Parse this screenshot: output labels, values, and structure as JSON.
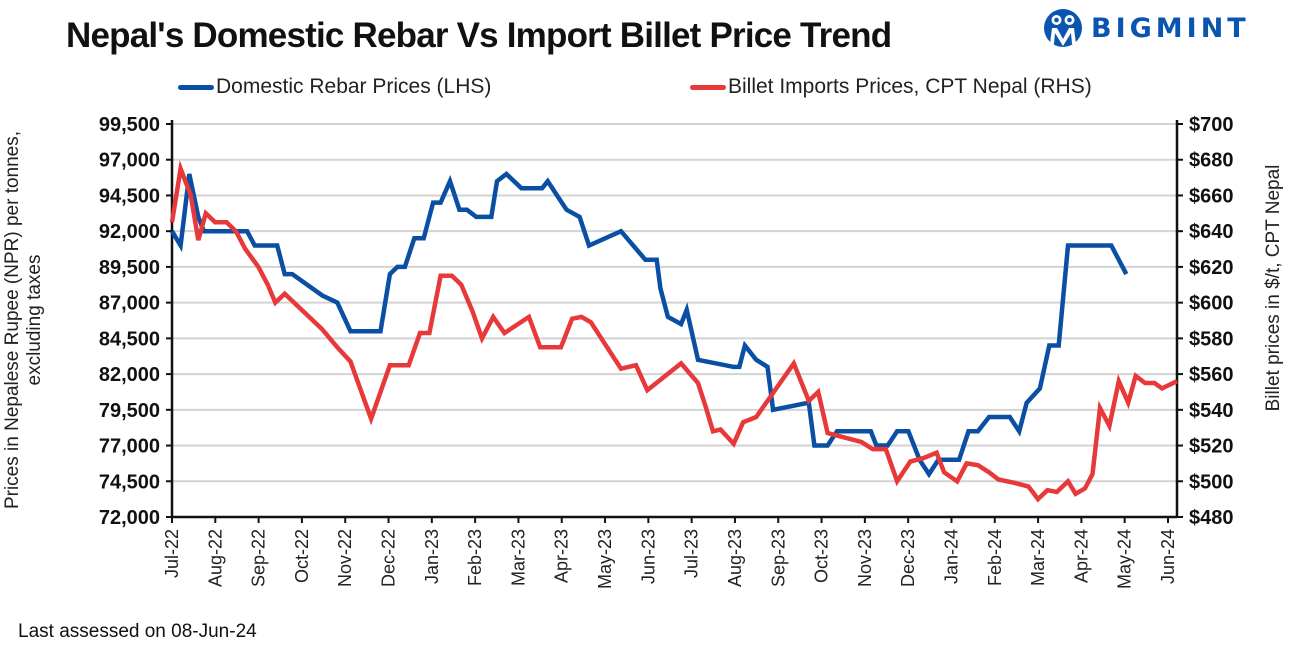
{
  "header": {
    "title": "Nepal's Domestic Rebar Vs Import Billet Price Trend",
    "logo_text": "BIGMINT",
    "logo_icon": "people-circle-icon",
    "brand_color": "#0a55b0"
  },
  "footer": {
    "note": "Last assessed on 08-Jun-24"
  },
  "chart_data": {
    "type": "line",
    "title": "Nepal's Domestic Rebar Vs Import Billet Price Trend",
    "xlabel": "",
    "ylabel": "Prices in Nepalese Rupee (NPR) per tonnes, excluding taxes",
    "ylabel_left_lines": [
      "Prices in Nepalese Rupee (NPR) per tonnes,",
      "excluding taxes"
    ],
    "y2label": "Billet prices in $/t, CPT Nepal",
    "legend_position": "top",
    "grid": true,
    "x_tick_labels": [
      "Jul-22",
      "Aug-22",
      "Sep-22",
      "Oct-22",
      "Nov-22",
      "Dec-22",
      "Jan-23",
      "Feb-23",
      "Mar-23",
      "Apr-23",
      "May-23",
      "Jun-23",
      "Jul-23",
      "Aug-23",
      "Sep-23",
      "Oct-23",
      "Nov-23",
      "Dec-23",
      "Jan-24",
      "Feb-24",
      "Mar-24",
      "Apr-24",
      "May-24",
      "Jun-24"
    ],
    "x_range_months": [
      0,
      23.2
    ],
    "ylim": [
      72000,
      99500
    ],
    "y_ticks": [
      72000,
      74500,
      77000,
      79500,
      82000,
      84500,
      87000,
      89500,
      92000,
      94500,
      97000,
      99500
    ],
    "y_tick_labels": [
      "72,000",
      "74,500",
      "77,000",
      "79,500",
      "82,000",
      "84,500",
      "87,000",
      "89,500",
      "92,000",
      "94,500",
      "97,000",
      "99,500"
    ],
    "y2lim": [
      480,
      700
    ],
    "y2_ticks": [
      480,
      500,
      520,
      540,
      560,
      580,
      600,
      620,
      640,
      660,
      680,
      700
    ],
    "y2_tick_labels": [
      "$480",
      "$500",
      "$520",
      "$540",
      "$560",
      "$580",
      "$600",
      "$620",
      "$640",
      "$660",
      "$680",
      "$700"
    ],
    "series": [
      {
        "name": "Domestic Rebar Prices (LHS)",
        "axis": "left",
        "color": "#0a4fa3",
        "points": [
          [
            0.0,
            92000
          ],
          [
            0.23,
            91000
          ],
          [
            0.46,
            96000
          ],
          [
            0.7,
            93000
          ],
          [
            0.85,
            92000
          ],
          [
            1.2,
            92000
          ],
          [
            1.6,
            92000
          ],
          [
            2.0,
            92000
          ],
          [
            2.2,
            91000
          ],
          [
            2.6,
            91000
          ],
          [
            2.8,
            91000
          ],
          [
            3.0,
            89000
          ],
          [
            3.2,
            89000
          ],
          [
            4.0,
            87500
          ],
          [
            4.4,
            87000
          ],
          [
            4.75,
            85000
          ],
          [
            5.2,
            85000
          ],
          [
            5.55,
            85000
          ],
          [
            5.8,
            89000
          ],
          [
            6.0,
            89500
          ],
          [
            6.2,
            89500
          ],
          [
            6.45,
            91500
          ],
          [
            6.7,
            91500
          ],
          [
            6.95,
            94000
          ],
          [
            7.15,
            94000
          ],
          [
            7.4,
            95500
          ],
          [
            7.65,
            93500
          ],
          [
            7.85,
            93500
          ],
          [
            8.1,
            93000
          ],
          [
            8.5,
            93000
          ],
          [
            8.65,
            95500
          ],
          [
            8.9,
            96000
          ],
          [
            9.3,
            95000
          ],
          [
            9.6,
            95000
          ],
          [
            9.85,
            95000
          ],
          [
            10.0,
            95500
          ],
          [
            10.5,
            93500
          ],
          [
            10.85,
            93000
          ],
          [
            11.1,
            91000
          ],
          [
            11.95,
            92000
          ],
          [
            12.6,
            90000
          ],
          [
            12.9,
            90000
          ],
          [
            13.0,
            88000
          ],
          [
            13.2,
            86000
          ],
          [
            13.55,
            85500
          ],
          [
            13.7,
            86500
          ],
          [
            14.0,
            83000
          ],
          [
            14.95,
            82500
          ],
          [
            15.1,
            82500
          ],
          [
            15.25,
            84000
          ],
          [
            15.55,
            83000
          ],
          [
            15.85,
            82500
          ],
          [
            16.0,
            79500
          ],
          [
            16.95,
            80000
          ],
          [
            17.1,
            77000
          ],
          [
            17.45,
            77000
          ],
          [
            17.7,
            78000
          ],
          [
            18.0,
            78000
          ],
          [
            18.3,
            78000
          ],
          [
            18.6,
            78000
          ],
          [
            18.75,
            77000
          ],
          [
            19.05,
            77000
          ],
          [
            19.3,
            78000
          ],
          [
            19.6,
            78000
          ],
          [
            19.9,
            76000
          ],
          [
            20.15,
            75000
          ],
          [
            20.4,
            76000
          ],
          [
            20.7,
            76000
          ],
          [
            20.95,
            76000
          ],
          [
            21.2,
            78000
          ],
          [
            21.45,
            78000
          ],
          [
            21.75,
            79000
          ],
          [
            22.0,
            79000
          ],
          [
            22.3,
            79000
          ],
          [
            22.55,
            78000
          ],
          [
            22.75,
            80000
          ],
          [
            23.1,
            81000
          ],
          [
            23.35,
            84000
          ],
          [
            23.6,
            84000
          ],
          [
            23.85,
            91000
          ],
          [
            24.2,
            91000
          ],
          [
            24.7,
            91000
          ],
          [
            25.0,
            91000
          ],
          [
            25.4,
            89000
          ]
        ]
      },
      {
        "name": "Billet Imports Prices, CPT Nepal (RHS)",
        "axis": "right",
        "color": "#e8393a",
        "points": [
          [
            0.0,
            645
          ],
          [
            0.23,
            675
          ],
          [
            0.5,
            660
          ],
          [
            0.7,
            635
          ],
          [
            0.9,
            650
          ],
          [
            1.15,
            645
          ],
          [
            1.45,
            645
          ],
          [
            1.7,
            640
          ],
          [
            1.95,
            630
          ],
          [
            2.3,
            620
          ],
          [
            2.55,
            610
          ],
          [
            2.75,
            600
          ],
          [
            3.0,
            605
          ],
          [
            4.0,
            585
          ],
          [
            4.4,
            575
          ],
          [
            4.75,
            567
          ],
          [
            5.3,
            535
          ],
          [
            5.8,
            565
          ],
          [
            6.3,
            565
          ],
          [
            6.6,
            583
          ],
          [
            6.85,
            583
          ],
          [
            7.15,
            615
          ],
          [
            7.45,
            615
          ],
          [
            7.7,
            610
          ],
          [
            8.0,
            595
          ],
          [
            8.25,
            580
          ],
          [
            8.55,
            592
          ],
          [
            8.85,
            583
          ],
          [
            9.5,
            592
          ],
          [
            9.8,
            575
          ],
          [
            10.35,
            575
          ],
          [
            10.65,
            591
          ],
          [
            10.9,
            592
          ],
          [
            11.15,
            589
          ],
          [
            11.95,
            563
          ],
          [
            12.35,
            565
          ],
          [
            12.65,
            551
          ],
          [
            13.55,
            566
          ],
          [
            14.0,
            555
          ],
          [
            14.2,
            542
          ],
          [
            14.4,
            528
          ],
          [
            14.6,
            529
          ],
          [
            14.95,
            521
          ],
          [
            15.2,
            533
          ],
          [
            15.55,
            536
          ],
          [
            16.55,
            566
          ],
          [
            16.95,
            545
          ],
          [
            17.2,
            550
          ],
          [
            17.45,
            527
          ],
          [
            18.35,
            522
          ],
          [
            18.65,
            518
          ],
          [
            19.0,
            518
          ],
          [
            19.3,
            500
          ],
          [
            19.65,
            511
          ],
          [
            20.0,
            513
          ],
          [
            20.35,
            516
          ],
          [
            20.55,
            505
          ],
          [
            20.9,
            500
          ],
          [
            21.15,
            510
          ],
          [
            21.45,
            509
          ],
          [
            21.75,
            505
          ],
          [
            22.0,
            501
          ],
          [
            22.45,
            499
          ],
          [
            22.8,
            497
          ],
          [
            23.05,
            490
          ],
          [
            23.3,
            495
          ],
          [
            23.55,
            494
          ],
          [
            23.85,
            500
          ],
          [
            24.05,
            493
          ],
          [
            24.3,
            496
          ],
          [
            24.5,
            504
          ],
          [
            24.7,
            541
          ],
          [
            24.95,
            531
          ],
          [
            25.2,
            556
          ],
          [
            25.45,
            544
          ],
          [
            25.65,
            559
          ],
          [
            25.9,
            555
          ],
          [
            26.15,
            555
          ],
          [
            26.35,
            552
          ],
          [
            26.75,
            556
          ]
        ]
      }
    ]
  }
}
